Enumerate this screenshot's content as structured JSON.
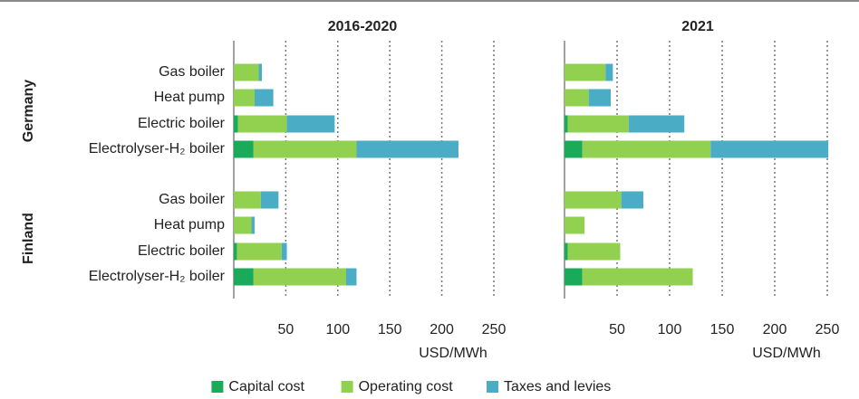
{
  "chart_data": [
    {
      "type": "bar",
      "orientation": "horizontal",
      "stacked": true,
      "title": "2016-2020",
      "x_label": "USD/MWh",
      "groups": [
        "Germany",
        "Finland"
      ],
      "categories": [
        "Gas boiler",
        "Heat pump",
        "Electric boiler",
        "Electrolyser-H₂ boiler",
        "Gas boiler",
        "Heat pump",
        "Electric boiler",
        "Electrolyser-H₂ boiler"
      ],
      "xlim": [
        0,
        250
      ],
      "xticks": [
        50,
        100,
        150,
        200,
        250
      ],
      "grid": true,
      "series": [
        {
          "name": "Capital cost",
          "color": "#1aab5a",
          "values": [
            0,
            0,
            4,
            19,
            0,
            0,
            3,
            19
          ]
        },
        {
          "name": "Operating cost",
          "color": "#92d050",
          "values": [
            24,
            20,
            47,
            99,
            26,
            17,
            43,
            89
          ]
        },
        {
          "name": "Taxes and levies",
          "color": "#4bacc6",
          "values": [
            3,
            18,
            46,
            98,
            17,
            3,
            5,
            10
          ]
        }
      ]
    },
    {
      "type": "bar",
      "orientation": "horizontal",
      "stacked": true,
      "title": "2021",
      "x_label": "USD/MWh",
      "xlim": [
        0,
        250
      ],
      "xticks": [
        50,
        100,
        150,
        200,
        250
      ],
      "grid": true,
      "series": [
        {
          "values": [
            0,
            0,
            3,
            17,
            0,
            0,
            3,
            17
          ]
        },
        {
          "values": [
            39,
            23,
            58,
            122,
            54,
            19,
            50,
            105
          ]
        },
        {
          "values": [
            7,
            21,
            53,
            112,
            21,
            0,
            0,
            0
          ]
        }
      ]
    }
  ]
}
